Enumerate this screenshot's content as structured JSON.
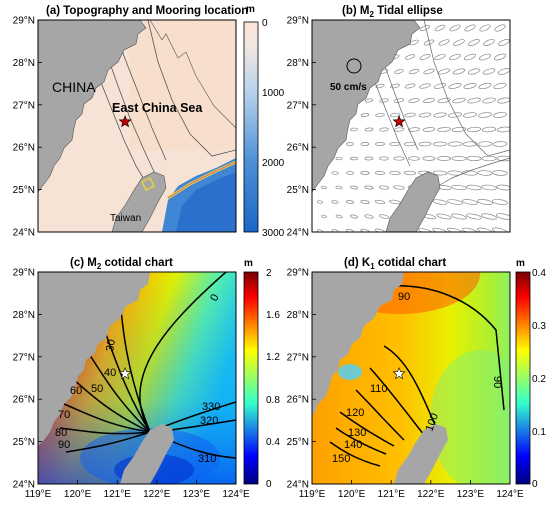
{
  "panels": {
    "a": {
      "title": "(a) Topography and Mooring location",
      "labels": {
        "china": "CHINA",
        "sea": "East China Sea",
        "taiwan": "Taiwan"
      },
      "colorbar": {
        "unit": "m",
        "ticks": [
          "0",
          "1000",
          "2000",
          "3000"
        ]
      }
    },
    "b": {
      "title_pre": "(b) M",
      "title_sub": "2",
      "title_post": " Tidal ellipse",
      "scale_label": "50 cm/s"
    },
    "c": {
      "title_pre": "(c) M",
      "title_sub": "2",
      "title_post": " cotidal chart",
      "colorbar": {
        "unit": "m",
        "ticks": [
          "2",
          "1.6",
          "1.2",
          "0.8",
          "0.4",
          "0"
        ]
      },
      "phase_labels": [
        "0",
        "30",
        "40",
        "50",
        "60",
        "70",
        "80",
        "90",
        "330",
        "320",
        "310"
      ]
    },
    "d": {
      "title_pre": "(d) K",
      "title_sub": "1",
      "title_post": " cotidal chart",
      "colorbar": {
        "unit": "m",
        "ticks": [
          "0.4",
          "0.3",
          "0.2",
          "0.1",
          "0"
        ]
      },
      "phase_labels": [
        "90",
        "90",
        "110",
        "100",
        "120",
        "130",
        "140",
        "150"
      ]
    }
  },
  "axes": {
    "lat_labels": [
      "29°N",
      "28°N",
      "27°N",
      "26°N",
      "25°N",
      "24°N"
    ],
    "lon_labels": [
      "119°E",
      "120°E",
      "121°E",
      "122°E",
      "123°E",
      "124°E"
    ]
  },
  "mooring": {
    "lon": 121.2,
    "lat": 26.6
  },
  "colors": {
    "land": "#a6a6a6",
    "marker_red": "#c00000"
  }
}
